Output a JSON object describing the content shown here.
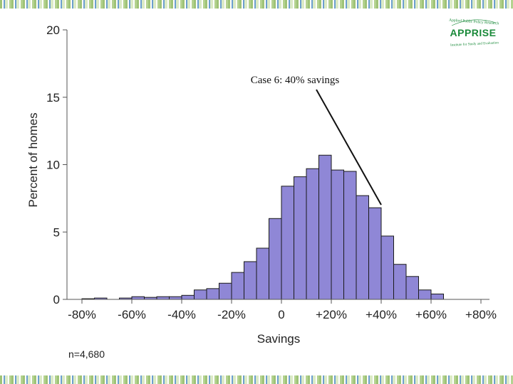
{
  "logo": {
    "name": "APPRISE",
    "tagline_top": "Applied Public Policy Research",
    "tagline_bottom": "Institute for Study and Evaluation",
    "color": "#1a8a3a"
  },
  "annotation": {
    "text": "Case 6:  40% savings"
  },
  "footnote": "n=4,680",
  "colors": {
    "bar_fill": "#8f87d6",
    "bar_stroke": "#1a1a1a",
    "axis": "#555555",
    "text": "#222222"
  },
  "chart_data": {
    "type": "bar",
    "title": "",
    "xlabel": "Savings",
    "ylabel": "Percent of homes",
    "xlim": [
      -0.85,
      0.85
    ],
    "ylim": [
      0,
      20
    ],
    "bin_width": 0.05,
    "xticks": [
      {
        "value": -0.8,
        "label": "-80%"
      },
      {
        "value": -0.6,
        "label": "-60%"
      },
      {
        "value": -0.4,
        "label": "-40%"
      },
      {
        "value": -0.2,
        "label": "-20%"
      },
      {
        "value": 0,
        "label": "0"
      },
      {
        "value": 0.2,
        "label": "+20%"
      },
      {
        "value": 0.4,
        "label": "+40%"
      },
      {
        "value": 0.6,
        "label": "+60%"
      },
      {
        "value": 0.8,
        "label": "+80%"
      }
    ],
    "yticks": [
      {
        "value": 0,
        "label": "0"
      },
      {
        "value": 5,
        "label": "5"
      },
      {
        "value": 10,
        "label": "10"
      },
      {
        "value": 15,
        "label": "15"
      },
      {
        "value": 20,
        "label": "20"
      }
    ],
    "bins": [
      {
        "start": -0.8,
        "value": 0.05
      },
      {
        "start": -0.75,
        "value": 0.1
      },
      {
        "start": -0.65,
        "value": 0.1
      },
      {
        "start": -0.6,
        "value": 0.2
      },
      {
        "start": -0.55,
        "value": 0.15
      },
      {
        "start": -0.5,
        "value": 0.2
      },
      {
        "start": -0.45,
        "value": 0.2
      },
      {
        "start": -0.4,
        "value": 0.3
      },
      {
        "start": -0.35,
        "value": 0.7
      },
      {
        "start": -0.3,
        "value": 0.8
      },
      {
        "start": -0.25,
        "value": 1.2
      },
      {
        "start": -0.2,
        "value": 2.0
      },
      {
        "start": -0.15,
        "value": 2.8
      },
      {
        "start": -0.1,
        "value": 3.8
      },
      {
        "start": -0.05,
        "value": 6.0
      },
      {
        "start": 0.0,
        "value": 8.4
      },
      {
        "start": 0.05,
        "value": 9.1
      },
      {
        "start": 0.1,
        "value": 9.7
      },
      {
        "start": 0.15,
        "value": 10.7
      },
      {
        "start": 0.2,
        "value": 9.6
      },
      {
        "start": 0.25,
        "value": 9.5
      },
      {
        "start": 0.3,
        "value": 7.7
      },
      {
        "start": 0.35,
        "value": 6.8
      },
      {
        "start": 0.4,
        "value": 4.7
      },
      {
        "start": 0.45,
        "value": 2.6
      },
      {
        "start": 0.5,
        "value": 1.7
      },
      {
        "start": 0.55,
        "value": 0.7
      },
      {
        "start": 0.6,
        "value": 0.4
      }
    ],
    "grid": false,
    "legend": "none"
  }
}
